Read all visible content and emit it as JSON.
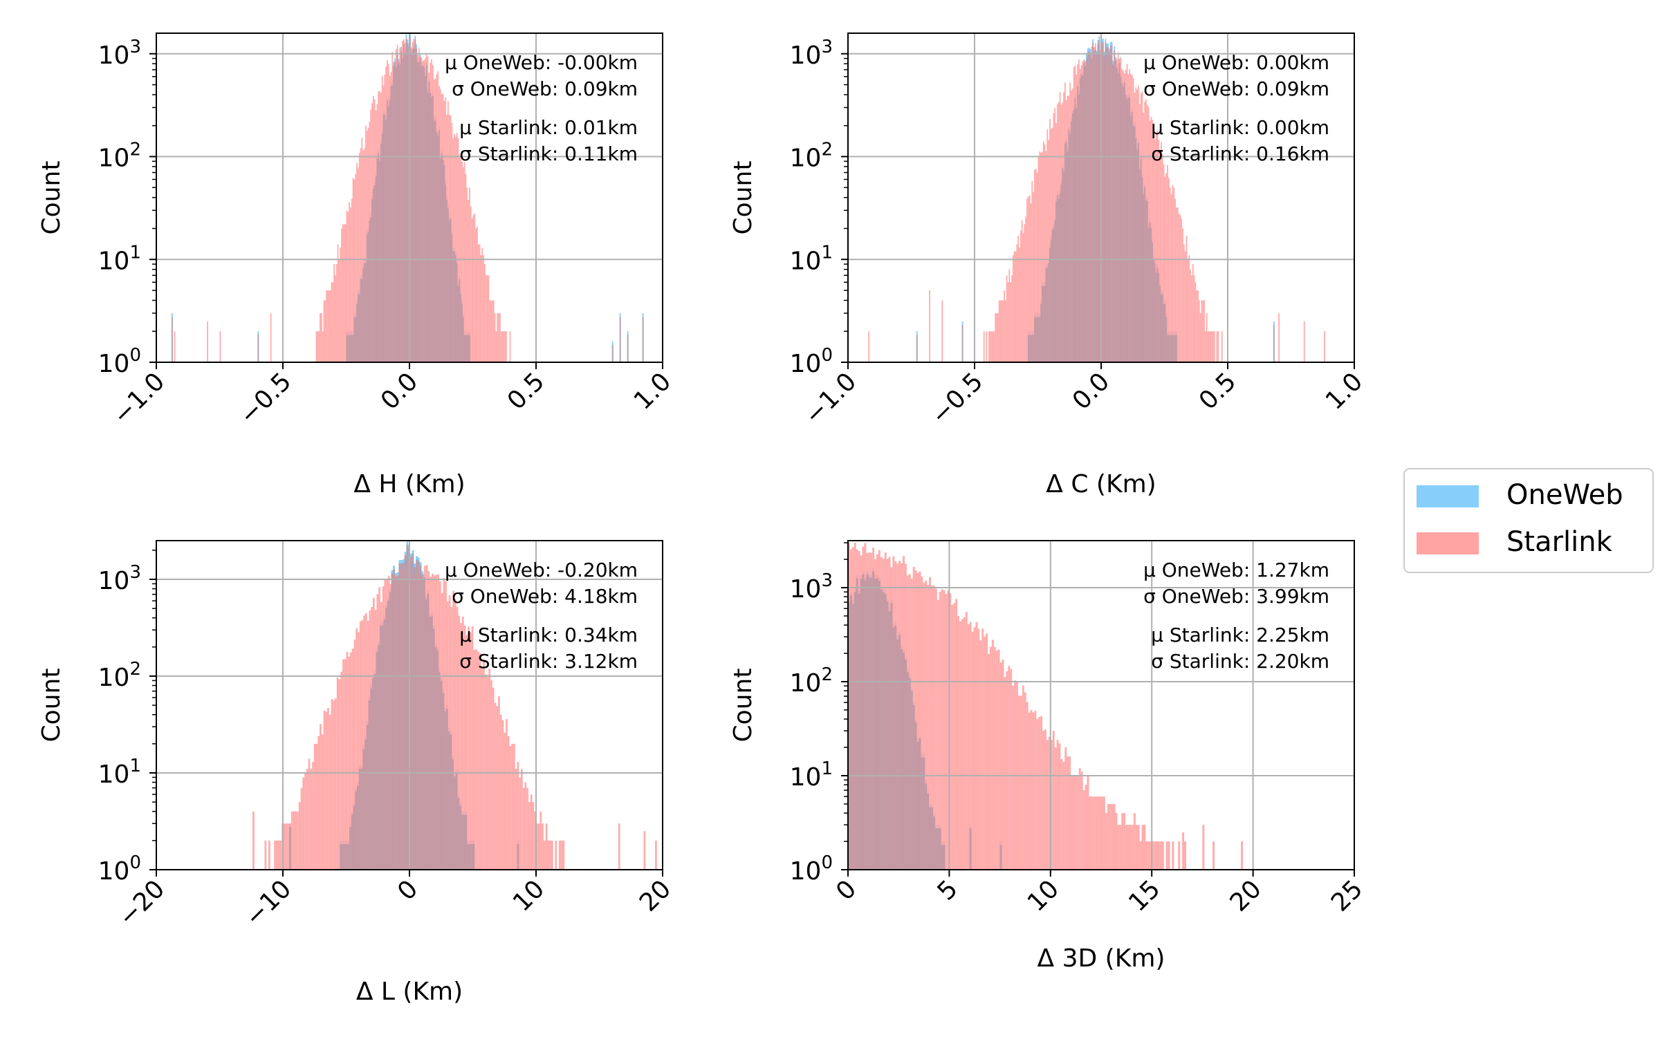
{
  "colors": {
    "oneweb": "#87CEFA",
    "starlink": "#FFA3A3",
    "overlap": "#BB96A2",
    "grid": "#b0b0b0"
  },
  "legend": {
    "placement": "right",
    "items": [
      "OneWeb",
      "Starlink"
    ]
  },
  "chart_data": [
    {
      "type": "bar",
      "xlabel": "Δ H (Km)",
      "ylabel": "Count",
      "xlim": [
        -1.0,
        1.0
      ],
      "ylim_log10": [
        0,
        3.2
      ],
      "yscale": "log",
      "grid": true,
      "xticks": [
        "−1.0",
        "−0.5",
        "0.0",
        "0.5",
        "1.0"
      ],
      "xtick_values": [
        -1.0,
        -0.5,
        0.0,
        0.5,
        1.0
      ],
      "yticks": [
        {
          "base": "10",
          "exp": "0"
        },
        {
          "base": "10",
          "exp": "1"
        },
        {
          "base": "10",
          "exp": "2"
        },
        {
          "base": "10",
          "exp": "3"
        }
      ],
      "annotations": [
        "μ OneWeb: -0.00km",
        "σ OneWeb: 0.09km",
        "μ Starlink: 0.01km",
        "σ Starlink: 0.11km"
      ],
      "series": [
        {
          "name": "OneWeb",
          "center": 0.0,
          "width": 0.055,
          "peak": 1300,
          "bin": 0.005,
          "range": [
            -0.97,
            0.95
          ],
          "outliers": [
            [
              -0.94,
              3
            ],
            [
              -0.6,
              2
            ],
            [
              0.83,
              3
            ],
            [
              0.86,
              2
            ],
            [
              0.8,
              1.6
            ],
            [
              0.92,
              3
            ]
          ]
        },
        {
          "name": "Starlink",
          "center": 0.0,
          "width": 0.09,
          "peak": 1100,
          "bin": 0.005,
          "range": [
            -0.93,
            0.92
          ],
          "outliers": [
            [
              -0.93,
              2
            ],
            [
              -0.8,
              2.5
            ],
            [
              -0.75,
              2
            ],
            [
              -0.55,
              3
            ]
          ]
        }
      ]
    },
    {
      "type": "bar",
      "xlabel": "Δ C (Km)",
      "ylabel": "Count",
      "xlim": [
        -1.0,
        1.0
      ],
      "ylim_log10": [
        0,
        3.2
      ],
      "yscale": "log",
      "grid": true,
      "xticks": [
        "−1.0",
        "−0.5",
        "0.0",
        "0.5",
        "1.0"
      ],
      "xtick_values": [
        -1.0,
        -0.5,
        0.0,
        0.5,
        1.0
      ],
      "yticks": [
        {
          "base": "10",
          "exp": "0"
        },
        {
          "base": "10",
          "exp": "1"
        },
        {
          "base": "10",
          "exp": "2"
        },
        {
          "base": "10",
          "exp": "3"
        }
      ],
      "annotations": [
        "μ OneWeb: 0.00km",
        "σ OneWeb: 0.09km",
        "μ Starlink: 0.00km",
        "σ Starlink: 0.16km"
      ],
      "series": [
        {
          "name": "OneWeb",
          "center": 0.0,
          "width": 0.065,
          "peak": 1300,
          "bin": 0.005,
          "range": [
            -0.75,
            0.7
          ],
          "outliers": [
            [
              -0.73,
              2
            ],
            [
              -0.55,
              2.5
            ],
            [
              0.68,
              2.5
            ]
          ]
        },
        {
          "name": "Starlink",
          "center": 0.0,
          "width": 0.11,
          "peak": 1000,
          "bin": 0.005,
          "range": [
            -0.93,
            0.93
          ],
          "outliers": [
            [
              -0.92,
              2
            ],
            [
              -0.68,
              5
            ],
            [
              -0.63,
              4
            ],
            [
              0.7,
              3
            ],
            [
              0.8,
              2.5
            ],
            [
              0.88,
              2
            ]
          ]
        }
      ]
    },
    {
      "type": "bar",
      "xlabel": "Δ L (Km)",
      "ylabel": "Count",
      "xlim": [
        -20,
        20
      ],
      "ylim_log10": [
        0,
        3.4
      ],
      "yscale": "log",
      "grid": true,
      "xticks": [
        "−20",
        "−10",
        "0",
        "10",
        "20"
      ],
      "xtick_values": [
        -20,
        -10,
        0,
        10,
        20
      ],
      "yticks": [
        {
          "base": "10",
          "exp": "0"
        },
        {
          "base": "10",
          "exp": "1"
        },
        {
          "base": "10",
          "exp": "2"
        },
        {
          "base": "10",
          "exp": "3"
        }
      ],
      "annotations": [
        "μ OneWeb: -0.20km",
        "σ OneWeb: 4.18km",
        "μ Starlink: 0.34km",
        "σ Starlink: 3.12km"
      ],
      "series": [
        {
          "name": "OneWeb",
          "center": -0.2,
          "width": 1.1,
          "peak": 1900,
          "bin": 0.15,
          "range": [
            -10,
            10
          ],
          "outliers": [
            [
              -9.5,
              3
            ],
            [
              8.5,
              2
            ]
          ]
        },
        {
          "name": "Starlink",
          "center": 0.3,
          "width": 2.6,
          "peak": 1200,
          "bin": 0.15,
          "range": [
            -12.5,
            19.5
          ],
          "outliers": [
            [
              -12.4,
              4
            ],
            [
              16.5,
              3
            ],
            [
              18.5,
              2.5
            ],
            [
              19.4,
              2
            ]
          ]
        }
      ]
    },
    {
      "type": "bar",
      "xlabel": "Δ 3D (Km)",
      "ylabel": "Count",
      "xlim": [
        0,
        25
      ],
      "ylim_log10": [
        0,
        3.5
      ],
      "yscale": "log",
      "grid": true,
      "xticks": [
        "0",
        "5",
        "10",
        "15",
        "20",
        "25"
      ],
      "xtick_values": [
        0,
        5,
        10,
        15,
        20,
        25
      ],
      "yticks": [
        {
          "base": "10",
          "exp": "0"
        },
        {
          "base": "10",
          "exp": "1"
        },
        {
          "base": "10",
          "exp": "2"
        },
        {
          "base": "10",
          "exp": "3"
        }
      ],
      "annotations": [
        "μ OneWeb: 1.27km",
        "σ OneWeb: 3.99km",
        "μ Starlink: 2.25km",
        "σ Starlink: 2.20km"
      ],
      "series": [
        {
          "name": "OneWeb",
          "center": 1.0,
          "width": 0.85,
          "peak": 1400,
          "bin": 0.1,
          "range": [
            0,
            10
          ],
          "outliers": [
            [
              6,
              3
            ],
            [
              7.5,
              2
            ]
          ]
        },
        {
          "name": "Starlink",
          "center": 0.0,
          "width": 3.2,
          "peak": 2400,
          "bin": 0.1,
          "range": [
            0,
            19.5
          ],
          "outliers": [
            [
              16.5,
              2.5
            ],
            [
              17.5,
              3
            ],
            [
              18,
              2
            ],
            [
              19.4,
              2
            ]
          ]
        }
      ]
    }
  ]
}
